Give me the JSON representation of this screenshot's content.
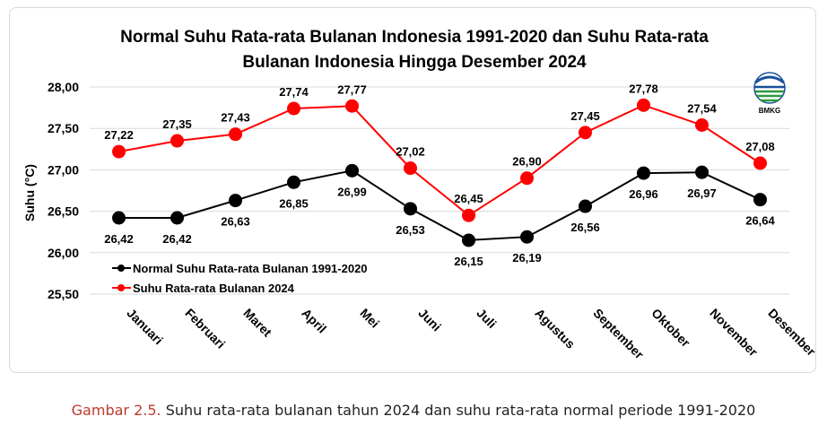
{
  "chart_data": {
    "type": "line",
    "title_line1": "Normal Suhu Rata-rata Bulanan Indonesia 1991-2020 dan Suhu Rata-rata",
    "title_line2": "Bulanan Indonesia Hingga Desember 2024",
    "ylabel": "Suhu (°C)",
    "xlabel": "",
    "ylim": [
      25.5,
      28.0
    ],
    "yticks": [
      "25,50",
      "26,00",
      "26,50",
      "27,00",
      "27,50",
      "28,00"
    ],
    "ytick_values": [
      25.5,
      26.0,
      26.5,
      27.0,
      27.5,
      28.0
    ],
    "grid": true,
    "legend_position": "bottom-left",
    "categories": [
      "Januari",
      "Februari",
      "Maret",
      "April",
      "Mei",
      "Juni",
      "Juli",
      "Agustus",
      "September",
      "Oktober",
      "November",
      "Desember"
    ],
    "series": [
      {
        "name": "Normal Suhu Rata-rata Bulanan 1991-2020",
        "color": "#000000",
        "values": [
          26.42,
          26.42,
          26.63,
          26.85,
          26.99,
          26.53,
          26.15,
          26.19,
          26.56,
          26.96,
          26.97,
          26.64
        ],
        "labels": [
          "26,42",
          "26,42",
          "26,63",
          "26,85",
          "26,99",
          "26,53",
          "26,15",
          "26,19",
          "26,56",
          "26,96",
          "26,97",
          "26,64"
        ]
      },
      {
        "name": "Suhu Rata-rata Bulanan 2024",
        "color": "#ff0000",
        "values": [
          27.22,
          27.35,
          27.43,
          27.74,
          27.77,
          27.02,
          26.45,
          26.9,
          27.45,
          27.78,
          27.54,
          27.08
        ],
        "labels": [
          "27,22",
          "27,35",
          "27,43",
          "27,74",
          "27,77",
          "27,02",
          "26,45",
          "26,90",
          "27,45",
          "27,78",
          "27,54",
          "27,08"
        ]
      }
    ]
  },
  "logo": {
    "text": "BMKG",
    "icon": "bmkg-logo-icon"
  },
  "caption": {
    "label": "Gambar 2.5.",
    "text": " Suhu rata-rata bulanan tahun 2024 dan suhu rata-rata normal periode 1991-2020"
  }
}
